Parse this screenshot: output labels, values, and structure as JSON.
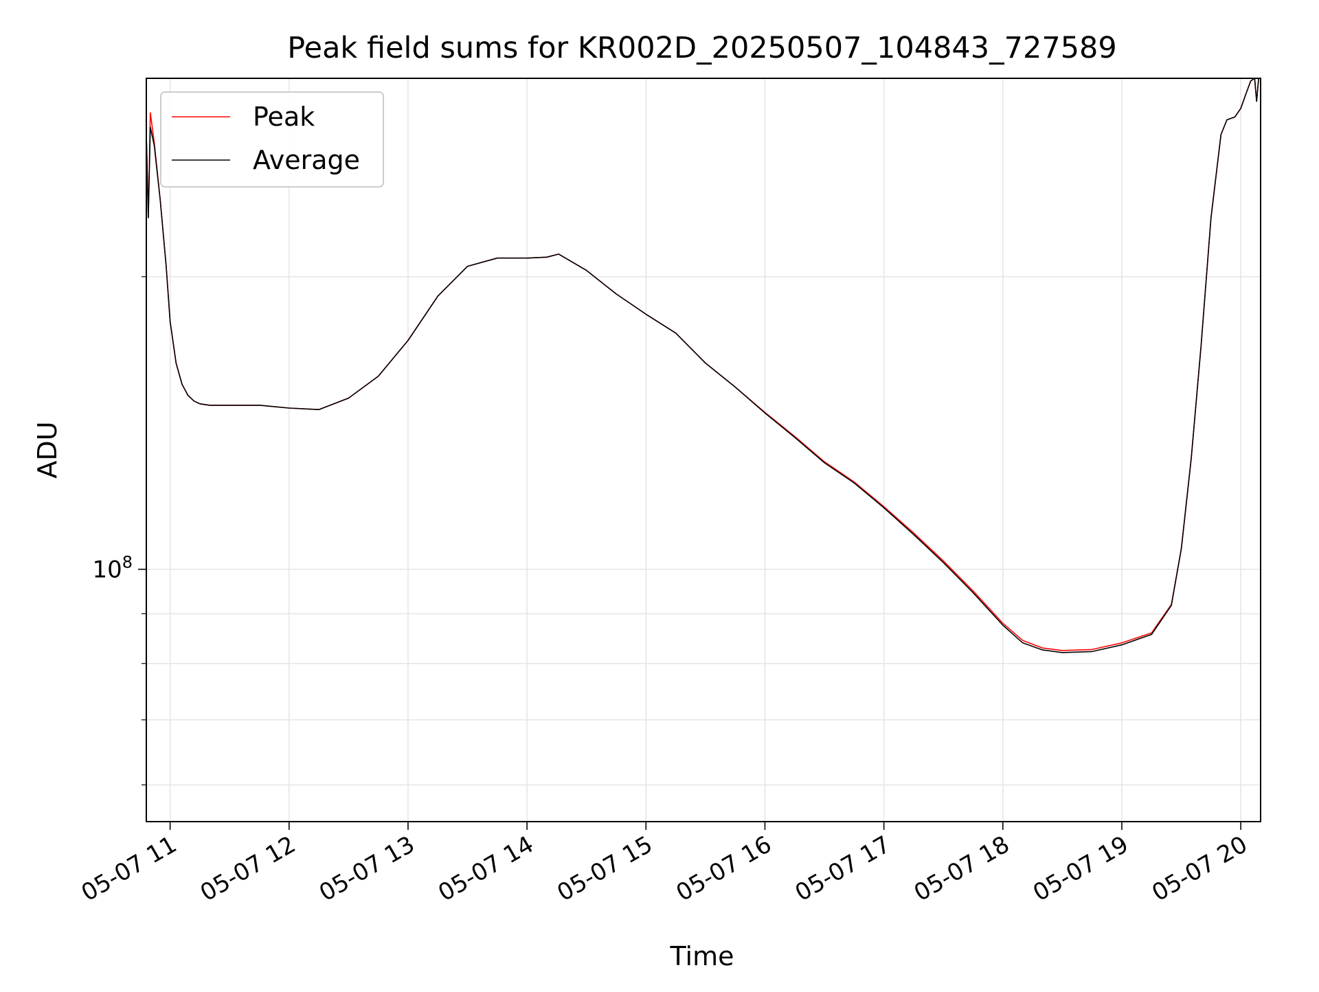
{
  "chart_data": {
    "type": "line",
    "title": "Peak field sums for KR002D_20250507_104843_727589",
    "xlabel": "Time",
    "ylabel": "ADU",
    "y_scale": "log",
    "grid": true,
    "legend_position": "top-left",
    "x_tick_labels": [
      "05-07 11",
      "05-07 12",
      "05-07 13",
      "05-07 14",
      "05-07 15",
      "05-07 16",
      "05-07 17",
      "05-07 18",
      "05-07 19",
      "05-07 20"
    ],
    "x_ticks": [
      "2025-05-07 11:00",
      "2025-05-07 12:00",
      "2025-05-07 13:00",
      "2025-05-07 14:00",
      "2025-05-07 15:00",
      "2025-05-07 16:00",
      "2025-05-07 17:00",
      "2025-05-07 18:00",
      "2025-05-07 19:00",
      "2025-05-07 20:00"
    ],
    "xlim": [
      "2025-05-07 10:48",
      "2025-05-07 20:10"
    ],
    "y_major_ticks": [
      100000000
    ],
    "y_major_tick_labels": [
      "10^8"
    ],
    "y_minor_ticks": [
      60000000,
      70000000,
      80000000,
      90000000,
      200000000
    ],
    "ylim": [
      55000000,
      320000000
    ],
    "colors": {
      "Peak": "#ff0000",
      "Average": "#000000"
    },
    "series": [
      {
        "name": "Peak",
        "x": [
          "2025-05-07 10:48",
          "2025-05-07 10:49",
          "2025-05-07 10:50",
          "2025-05-07 10:52",
          "2025-05-07 10:55",
          "2025-05-07 10:58",
          "2025-05-07 11:00",
          "2025-05-07 11:03",
          "2025-05-07 11:06",
          "2025-05-07 11:09",
          "2025-05-07 11:12",
          "2025-05-07 11:15",
          "2025-05-07 11:20",
          "2025-05-07 11:30",
          "2025-05-07 11:45",
          "2025-05-07 12:00",
          "2025-05-07 12:15",
          "2025-05-07 12:30",
          "2025-05-07 12:45",
          "2025-05-07 13:00",
          "2025-05-07 13:15",
          "2025-05-07 13:30",
          "2025-05-07 13:45",
          "2025-05-07 14:00",
          "2025-05-07 14:10",
          "2025-05-07 14:16",
          "2025-05-07 14:30",
          "2025-05-07 14:45",
          "2025-05-07 15:00",
          "2025-05-07 15:15",
          "2025-05-07 15:30",
          "2025-05-07 15:45",
          "2025-05-07 16:00",
          "2025-05-07 16:15",
          "2025-05-07 16:30",
          "2025-05-07 16:45",
          "2025-05-07 17:00",
          "2025-05-07 17:15",
          "2025-05-07 17:30",
          "2025-05-07 17:45",
          "2025-05-07 18:00",
          "2025-05-07 18:10",
          "2025-05-07 18:20",
          "2025-05-07 18:30",
          "2025-05-07 18:45",
          "2025-05-07 19:00",
          "2025-05-07 19:15",
          "2025-05-07 19:25",
          "2025-05-07 19:30",
          "2025-05-07 19:35",
          "2025-05-07 19:40",
          "2025-05-07 19:45",
          "2025-05-07 19:50",
          "2025-05-07 19:53",
          "2025-05-07 19:57",
          "2025-05-07 20:00",
          "2025-05-07 20:03",
          "2025-05-07 20:05",
          "2025-05-07 20:07",
          "2025-05-07 20:08",
          "2025-05-07 20:09"
        ],
        "values": [
          280000000,
          230000000,
          295000000,
          275000000,
          240000000,
          205000000,
          180000000,
          163000000,
          155000000,
          151000000,
          149000000,
          148000000,
          147500000,
          147500000,
          147500000,
          146500000,
          146000000,
          150000000,
          158000000,
          172000000,
          191000000,
          205000000,
          209000000,
          209000000,
          209500000,
          211000000,
          203000000,
          192000000,
          183000000,
          175000000,
          163000000,
          154000000,
          145000000,
          137000000,
          129000000,
          123000000,
          116000000,
          109000000,
          102000000,
          95000000,
          88000000,
          84500000,
          83000000,
          82500000,
          82700000,
          84000000,
          86000000,
          92000000,
          105000000,
          130000000,
          170000000,
          230000000,
          280000000,
          290000000,
          292000000,
          298000000,
          310000000,
          318000000,
          320000000,
          303000000,
          320000000
        ]
      },
      {
        "name": "Average",
        "x": [
          "2025-05-07 10:48",
          "2025-05-07 10:49",
          "2025-05-07 10:50",
          "2025-05-07 10:52",
          "2025-05-07 10:55",
          "2025-05-07 10:58",
          "2025-05-07 11:00",
          "2025-05-07 11:03",
          "2025-05-07 11:06",
          "2025-05-07 11:09",
          "2025-05-07 11:12",
          "2025-05-07 11:15",
          "2025-05-07 11:20",
          "2025-05-07 11:30",
          "2025-05-07 11:45",
          "2025-05-07 12:00",
          "2025-05-07 12:15",
          "2025-05-07 12:30",
          "2025-05-07 12:45",
          "2025-05-07 13:00",
          "2025-05-07 13:15",
          "2025-05-07 13:30",
          "2025-05-07 13:45",
          "2025-05-07 14:00",
          "2025-05-07 14:10",
          "2025-05-07 14:16",
          "2025-05-07 14:30",
          "2025-05-07 14:45",
          "2025-05-07 15:00",
          "2025-05-07 15:15",
          "2025-05-07 15:30",
          "2025-05-07 15:45",
          "2025-05-07 16:00",
          "2025-05-07 16:15",
          "2025-05-07 16:30",
          "2025-05-07 16:45",
          "2025-05-07 17:00",
          "2025-05-07 17:15",
          "2025-05-07 17:30",
          "2025-05-07 17:45",
          "2025-05-07 18:00",
          "2025-05-07 18:10",
          "2025-05-07 18:20",
          "2025-05-07 18:30",
          "2025-05-07 18:45",
          "2025-05-07 19:00",
          "2025-05-07 19:15",
          "2025-05-07 19:25",
          "2025-05-07 19:30",
          "2025-05-07 19:35",
          "2025-05-07 19:40",
          "2025-05-07 19:45",
          "2025-05-07 19:50",
          "2025-05-07 19:53",
          "2025-05-07 19:57",
          "2025-05-07 20:00",
          "2025-05-07 20:03",
          "2025-05-07 20:05",
          "2025-05-07 20:07",
          "2025-05-07 20:08",
          "2025-05-07 20:09"
        ],
        "values": [
          280000000,
          230000000,
          285000000,
          273000000,
          240000000,
          205000000,
          180000000,
          163000000,
          155000000,
          151000000,
          149000000,
          148000000,
          147500000,
          147500000,
          147500000,
          146500000,
          146000000,
          150000000,
          158000000,
          172000000,
          191000000,
          205000000,
          209000000,
          209000000,
          209500000,
          211000000,
          203000000,
          192000000,
          183000000,
          175000000,
          163000000,
          154000000,
          144800000,
          136700000,
          128700000,
          122700000,
          115700000,
          108600000,
          101600000,
          94600000,
          87600000,
          84000000,
          82600000,
          82100000,
          82300000,
          83600000,
          85700000,
          91800000,
          105000000,
          130000000,
          170000000,
          230000000,
          280000000,
          290000000,
          292000000,
          298000000,
          310000000,
          318000000,
          320000000,
          303000000,
          320000000
        ]
      }
    ]
  }
}
